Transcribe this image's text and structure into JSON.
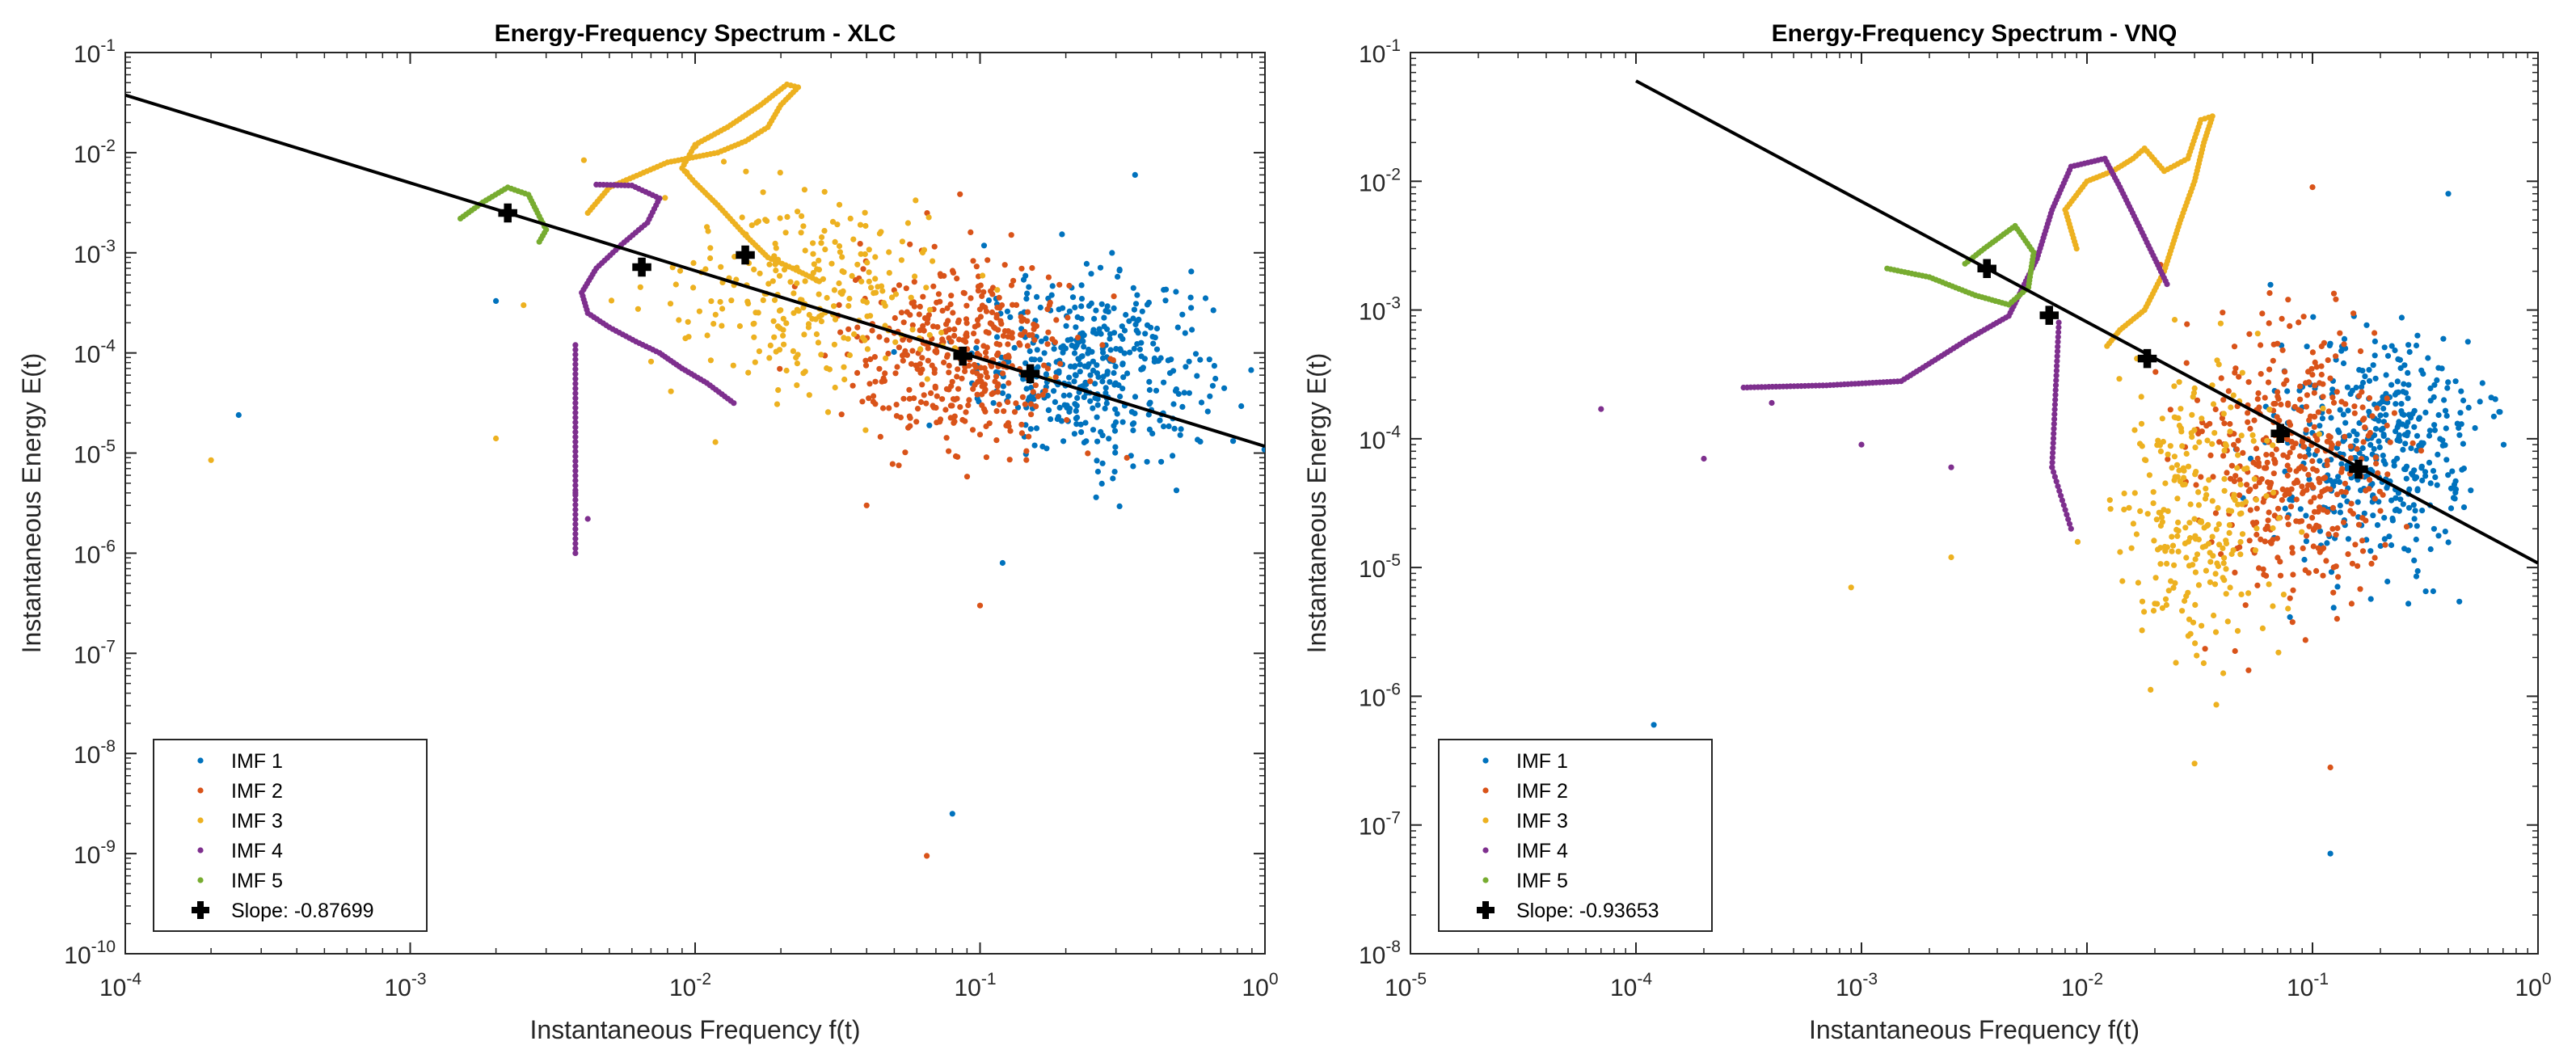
{
  "chart_data": [
    {
      "type": "scatter",
      "title": "Energy-Frequency Spectrum - XLC",
      "xlabel": "Instantaneous Frequency f(t)",
      "ylabel": "Instantaneous Energy E(t)",
      "xscale": "log",
      "yscale": "log",
      "xlim": [
        0.0001,
        1
      ],
      "ylim": [
        1e-10,
        0.1
      ],
      "x_ticks": [
        {
          "base": "10",
          "exp": "-4"
        },
        {
          "base": "10",
          "exp": "-3"
        },
        {
          "base": "10",
          "exp": "-2"
        },
        {
          "base": "10",
          "exp": "-1"
        },
        {
          "base": "10",
          "exp": "0"
        }
      ],
      "y_ticks": [
        {
          "base": "10",
          "exp": "-10"
        },
        {
          "base": "10",
          "exp": "-9"
        },
        {
          "base": "10",
          "exp": "-8"
        },
        {
          "base": "10",
          "exp": "-7"
        },
        {
          "base": "10",
          "exp": "-6"
        },
        {
          "base": "10",
          "exp": "-5"
        },
        {
          "base": "10",
          "exp": "-4"
        },
        {
          "base": "10",
          "exp": "-3"
        },
        {
          "base": "10",
          "exp": "-2"
        },
        {
          "base": "10",
          "exp": "-1"
        }
      ],
      "legend_location": "bottom-left",
      "series": [
        {
          "name": "IMF 1",
          "color": "#0072BD",
          "kind": "cloud",
          "center": [
            0.25,
            7e-05
          ],
          "spread": [
            0.2,
            0.45
          ],
          "outliers": [
            [
              0.00025,
              2.4e-05
            ],
            [
              0.002,
              0.00033
            ],
            [
              0.12,
              8e-07
            ],
            [
              0.08,
              2.5e-09
            ],
            [
              0.35,
              0.006
            ]
          ]
        },
        {
          "name": "IMF 2",
          "color": "#D95319",
          "kind": "cloud",
          "center": [
            0.085,
            0.0001
          ],
          "spread": [
            0.2,
            0.5
          ],
          "outliers": [
            [
              0.065,
              9.5e-10
            ],
            [
              0.04,
              3e-06
            ],
            [
              0.1,
              3e-07
            ]
          ]
        },
        {
          "name": "IMF 3",
          "color": "#EDB120",
          "kind": "mixed",
          "path": [
            [
              0.0042,
              0.0025
            ],
            [
              0.005,
              0.0045
            ],
            [
              0.008,
              0.008
            ],
            [
              0.012,
              0.01
            ],
            [
              0.015,
              0.013
            ],
            [
              0.018,
              0.018
            ],
            [
              0.02,
              0.03
            ],
            [
              0.023,
              0.045
            ],
            [
              0.021,
              0.048
            ],
            [
              0.017,
              0.03
            ],
            [
              0.013,
              0.018
            ],
            [
              0.01,
              0.012
            ],
            [
              0.009,
              0.007
            ],
            [
              0.01,
              0.005
            ],
            [
              0.012,
              0.003
            ],
            [
              0.015,
              0.0015
            ],
            [
              0.018,
              0.0009
            ],
            [
              0.022,
              0.0007
            ],
            [
              0.028,
              0.0005
            ]
          ],
          "center": [
            0.025,
            0.0004
          ],
          "spread": [
            0.25,
            0.5
          ],
          "outliers": [
            [
              0.0002,
              8.5e-06
            ],
            [
              0.0025,
              0.0003
            ],
            [
              0.002,
              1.4e-05
            ]
          ]
        },
        {
          "name": "IMF 4",
          "color": "#7E2F8E",
          "kind": "path",
          "path": [
            [
              0.0045,
              0.0048
            ],
            [
              0.006,
              0.0047
            ],
            [
              0.0075,
              0.0035
            ],
            [
              0.0068,
              0.002
            ],
            [
              0.0055,
              0.0012
            ],
            [
              0.0045,
              0.0007
            ],
            [
              0.004,
              0.0004
            ],
            [
              0.0042,
              0.00025
            ],
            [
              0.005,
              0.00018
            ],
            [
              0.0062,
              0.00013
            ],
            [
              0.0075,
              0.0001
            ],
            [
              0.009,
              7e-05
            ],
            [
              0.011,
              5e-05
            ],
            [
              0.014,
              3e-05
            ]
          ],
          "tail": [
            [
              0.0038,
              0.00012
            ],
            [
              0.0038,
              1e-06
            ]
          ],
          "outliers": [
            [
              0.0038,
              4e-06
            ],
            [
              0.0042,
              2.2e-06
            ]
          ]
        },
        {
          "name": "IMF 5",
          "color": "#77AC30",
          "kind": "path",
          "path": [
            [
              0.0015,
              0.0022
            ],
            [
              0.0018,
              0.0032
            ],
            [
              0.0022,
              0.0045
            ],
            [
              0.0026,
              0.0038
            ],
            [
              0.0028,
              0.0025
            ],
            [
              0.003,
              0.0017
            ],
            [
              0.0028,
              0.0012
            ]
          ]
        }
      ],
      "fit": {
        "name": "Slope: -0.87699",
        "slope": -0.87699,
        "markers": [
          [
            0.0022,
            0.0025
          ],
          [
            0.0065,
            0.00072
          ],
          [
            0.015,
            0.00095
          ],
          [
            0.087,
            9.3e-05
          ],
          [
            0.15,
            6.2e-05
          ]
        ]
      }
    },
    {
      "type": "scatter",
      "title": "Energy-Frequency Spectrum - VNQ",
      "xlabel": "Instantaneous Frequency f(t)",
      "ylabel": "Instantaneous Energy E(t)",
      "xscale": "log",
      "yscale": "log",
      "xlim": [
        1e-05,
        1
      ],
      "ylim": [
        1e-08,
        0.1
      ],
      "x_ticks": [
        {
          "base": "10",
          "exp": "-5"
        },
        {
          "base": "10",
          "exp": "-4"
        },
        {
          "base": "10",
          "exp": "-3"
        },
        {
          "base": "10",
          "exp": "-2"
        },
        {
          "base": "10",
          "exp": "-1"
        },
        {
          "base": "10",
          "exp": "0"
        }
      ],
      "y_ticks": [
        {
          "base": "10",
          "exp": "-8"
        },
        {
          "base": "10",
          "exp": "-7"
        },
        {
          "base": "10",
          "exp": "-6"
        },
        {
          "base": "10",
          "exp": "-5"
        },
        {
          "base": "10",
          "exp": "-4"
        },
        {
          "base": "10",
          "exp": "-3"
        },
        {
          "base": "10",
          "exp": "-2"
        },
        {
          "base": "10",
          "exp": "-1"
        }
      ],
      "legend_location": "bottom-left",
      "series": [
        {
          "name": "IMF 1",
          "color": "#0072BD",
          "kind": "cloud",
          "center": [
            0.2,
            8e-05
          ],
          "spread": [
            0.22,
            0.45
          ],
          "outliers": [
            [
              0.00012,
              6e-07
            ],
            [
              0.12,
              6e-08
            ],
            [
              0.4,
              0.008
            ]
          ]
        },
        {
          "name": "IMF 2",
          "color": "#D95319",
          "kind": "cloud",
          "center": [
            0.08,
            6e-05
          ],
          "spread": [
            0.22,
            0.55
          ],
          "outliers": [
            [
              0.1,
              0.009
            ],
            [
              0.12,
              2.8e-07
            ]
          ]
        },
        {
          "name": "IMF 3",
          "color": "#EDB120",
          "kind": "mixed",
          "path": [
            [
              0.009,
              0.003
            ],
            [
              0.008,
              0.006
            ],
            [
              0.01,
              0.01
            ],
            [
              0.013,
              0.012
            ],
            [
              0.016,
              0.015
            ],
            [
              0.018,
              0.018
            ],
            [
              0.022,
              0.012
            ],
            [
              0.028,
              0.015
            ],
            [
              0.032,
              0.03
            ],
            [
              0.036,
              0.032
            ],
            [
              0.033,
              0.02
            ],
            [
              0.03,
              0.01
            ],
            [
              0.026,
              0.005
            ],
            [
              0.022,
              0.002
            ],
            [
              0.018,
              0.001
            ],
            [
              0.014,
              0.0007
            ],
            [
              0.012,
              0.0005
            ]
          ],
          "center": [
            0.03,
            3e-05
          ],
          "spread": [
            0.2,
            0.55
          ],
          "outliers": [
            [
              0.0009,
              7e-06
            ],
            [
              0.0025,
              1.2e-05
            ],
            [
              0.03,
              3e-07
            ]
          ]
        },
        {
          "name": "IMF 4",
          "color": "#7E2F8E",
          "kind": "path",
          "path": [
            [
              0.0003,
              0.00025
            ],
            [
              0.0007,
              0.00026
            ],
            [
              0.0015,
              0.00028
            ],
            [
              0.003,
              0.0006
            ],
            [
              0.0045,
              0.0009
            ],
            [
              0.006,
              0.0025
            ],
            [
              0.007,
              0.006
            ],
            [
              0.0085,
              0.013
            ],
            [
              0.012,
              0.015
            ],
            [
              0.014,
              0.009
            ],
            [
              0.017,
              0.0045
            ],
            [
              0.02,
              0.0025
            ],
            [
              0.023,
              0.0015
            ]
          ],
          "tail": [
            [
              0.0075,
              0.0008
            ],
            [
              0.007,
              6e-05
            ],
            [
              0.0085,
              2e-05
            ]
          ],
          "outliers": [
            [
              7e-05,
              0.00017
            ],
            [
              0.0002,
              7e-05
            ],
            [
              0.0004,
              0.00019
            ],
            [
              0.001,
              9e-05
            ],
            [
              0.0025,
              6e-05
            ]
          ]
        },
        {
          "name": "IMF 5",
          "color": "#77AC30",
          "kind": "path",
          "path": [
            [
              0.0013,
              0.0021
            ],
            [
              0.002,
              0.0018
            ],
            [
              0.0032,
              0.0013
            ],
            [
              0.0045,
              0.0011
            ],
            [
              0.0055,
              0.0015
            ],
            [
              0.0058,
              0.0028
            ],
            [
              0.0048,
              0.0045
            ],
            [
              0.0035,
              0.003
            ],
            [
              0.0028,
              0.0022
            ]
          ]
        }
      ],
      "fit": {
        "name": "Slope: -0.93653",
        "slope": -0.93653,
        "markers": [
          [
            0.0036,
            0.0021
          ],
          [
            0.0068,
            0.00091
          ],
          [
            0.0185,
            0.00042
          ],
          [
            0.072,
            0.00011
          ],
          [
            0.16,
            5.8e-05
          ]
        ]
      }
    }
  ]
}
